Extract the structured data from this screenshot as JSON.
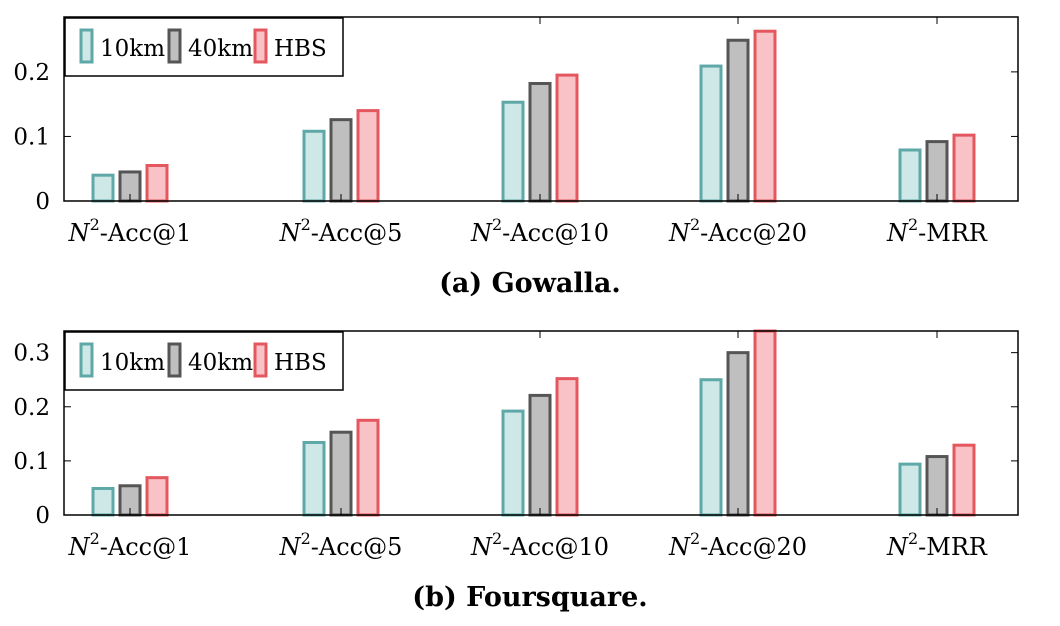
{
  "chart_data": [
    {
      "type": "bar",
      "panel": "gowalla",
      "title": "(a) Gowalla.",
      "categories": [
        {
          "base": "N",
          "sup": "2",
          "suffix": "-Acc@1"
        },
        {
          "base": "N",
          "sup": "2",
          "suffix": "-Acc@5"
        },
        {
          "base": "N",
          "sup": "2",
          "suffix": "-Acc@10"
        },
        {
          "base": "N",
          "sup": "2",
          "suffix": "-Acc@20"
        },
        {
          "base": "N",
          "sup": "2",
          "suffix": "-MRR"
        }
      ],
      "series": [
        {
          "name": "10km",
          "values": [
            0.04,
            0.108,
            0.153,
            0.209,
            0.079
          ],
          "fill": "#cde8e6",
          "stroke": "#5fa8a8"
        },
        {
          "name": "40km",
          "values": [
            0.045,
            0.126,
            0.182,
            0.249,
            0.092
          ],
          "fill": "#bfbfbf",
          "stroke": "#555555"
        },
        {
          "name": "HBS",
          "values": [
            0.055,
            0.14,
            0.195,
            0.263,
            0.102
          ],
          "fill": "#f8c2c6",
          "stroke": "#e4575f"
        }
      ],
      "ylim": [
        0,
        0.285
      ],
      "yticks": [
        {
          "value": 0,
          "label": "0"
        },
        {
          "value": 0.1,
          "label": "0.1"
        },
        {
          "value": 0.2,
          "label": "0.2"
        }
      ],
      "xlabel": "",
      "ylabel": "",
      "legend_position": "top-left",
      "grid": false
    },
    {
      "type": "bar",
      "panel": "foursquare",
      "title": "(b) Foursquare.",
      "categories": [
        {
          "base": "N",
          "sup": "2",
          "suffix": "-Acc@1"
        },
        {
          "base": "N",
          "sup": "2",
          "suffix": "-Acc@5"
        },
        {
          "base": "N",
          "sup": "2",
          "suffix": "-Acc@10"
        },
        {
          "base": "N",
          "sup": "2",
          "suffix": "-Acc@20"
        },
        {
          "base": "N",
          "sup": "2",
          "suffix": "-MRR"
        }
      ],
      "series": [
        {
          "name": "10km",
          "values": [
            0.049,
            0.134,
            0.192,
            0.25,
            0.094
          ],
          "fill": "#cde8e6",
          "stroke": "#5fa8a8"
        },
        {
          "name": "40km",
          "values": [
            0.054,
            0.153,
            0.221,
            0.3,
            0.108
          ],
          "fill": "#bfbfbf",
          "stroke": "#555555"
        },
        {
          "name": "HBS",
          "values": [
            0.069,
            0.175,
            0.252,
            0.34,
            0.129
          ],
          "fill": "#f8c2c6",
          "stroke": "#e4575f"
        }
      ],
      "ylim": [
        0,
        0.34
      ],
      "yticks": [
        {
          "value": 0,
          "label": "0"
        },
        {
          "value": 0.1,
          "label": "0.1"
        },
        {
          "value": 0.2,
          "label": "0.2"
        },
        {
          "value": 0.3,
          "label": "0.3"
        }
      ],
      "xlabel": "",
      "ylabel": "",
      "legend_position": "top-left",
      "grid": false
    }
  ]
}
